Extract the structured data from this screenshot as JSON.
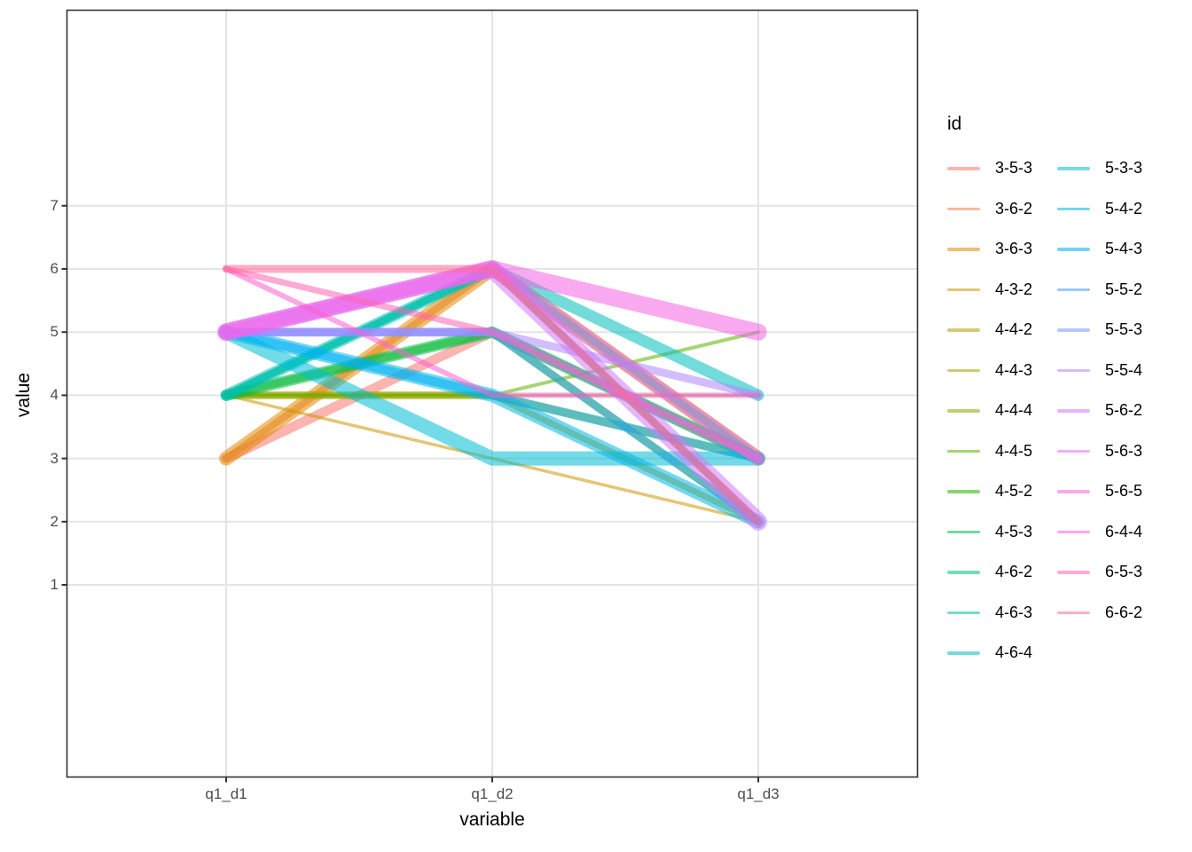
{
  "figure": {
    "background": "#FFFFFF",
    "panel_border_color": "#333333",
    "grid_color": "#E4E4E4",
    "tick_color": "#333333",
    "tick_label_color": "#4D4D4D"
  },
  "axes": {
    "x": {
      "title": "variable",
      "ticks": [
        "q1_d1",
        "q1_d2",
        "q1_d3"
      ]
    },
    "y": {
      "title": "value",
      "ticks": [
        "1",
        "2",
        "3",
        "4",
        "5",
        "6",
        "7"
      ]
    }
  },
  "legend": {
    "title": "id",
    "position": "right",
    "columns": [
      [
        "3-5-3",
        "3-6-2",
        "3-6-3",
        "4-3-2",
        "4-4-2",
        "4-4-3",
        "4-4-4",
        "4-4-5",
        "4-5-2",
        "4-5-3",
        "4-6-2",
        "4-6-3",
        "4-6-4"
      ],
      [
        "5-3-3",
        "5-4-2",
        "5-4-3",
        "5-5-2",
        "5-5-3",
        "5-5-4",
        "5-6-2",
        "5-6-3",
        "5-6-5",
        "6-4-4",
        "6-5-3",
        "6-6-2"
      ]
    ]
  },
  "chart_data": {
    "type": "line",
    "title": "",
    "xlabel": "variable",
    "ylabel": "value",
    "x_categories": [
      "q1_d1",
      "q1_d2",
      "q1_d3"
    ],
    "y_tick_values": [
      1,
      2,
      3,
      4,
      5,
      6,
      7
    ],
    "grid": "major-only",
    "legend_title": "id",
    "legend_position": "right",
    "line_alpha": 0.55,
    "line_cap": "round",
    "series": [
      {
        "id": "3-5-3",
        "values": [
          3,
          5,
          3
        ],
        "color": "#F8766D",
        "width": 11
      },
      {
        "id": "3-6-2",
        "values": [
          3,
          6,
          2
        ],
        "color": "#F08049",
        "width": 8
      },
      {
        "id": "3-6-3",
        "values": [
          3,
          6,
          3
        ],
        "color": "#E18A00",
        "width": 16
      },
      {
        "id": "4-3-2",
        "values": [
          4,
          3,
          2
        ],
        "color": "#CE9700",
        "width": 3.5
      },
      {
        "id": "4-4-2",
        "values": [
          4,
          4,
          2
        ],
        "color": "#B89E00",
        "width": 7
      },
      {
        "id": "4-4-3",
        "values": [
          4,
          4,
          3
        ],
        "color": "#A2A400",
        "width": 9
      },
      {
        "id": "4-4-4",
        "values": [
          4,
          4,
          4
        ],
        "color": "#85AC00",
        "width": 3
      },
      {
        "id": "4-4-5",
        "values": [
          4,
          4,
          5
        ],
        "color": "#5DB300",
        "width": 4
      },
      {
        "id": "4-5-2",
        "values": [
          4,
          5,
          2
        ],
        "color": "#21B700",
        "width": 9
      },
      {
        "id": "4-5-3",
        "values": [
          4,
          5,
          3
        ],
        "color": "#00BC51",
        "width": 13
      },
      {
        "id": "4-6-2",
        "values": [
          4,
          6,
          2
        ],
        "color": "#00BF7B",
        "width": 8
      },
      {
        "id": "4-6-3",
        "values": [
          4,
          6,
          3
        ],
        "color": "#00C19D",
        "width": 9
      },
      {
        "id": "4-6-4",
        "values": [
          4,
          6,
          4
        ],
        "color": "#00C0BC",
        "width": 13
      },
      {
        "id": "5-3-3",
        "values": [
          5,
          3,
          3
        ],
        "color": "#00BDD4",
        "width": 16
      },
      {
        "id": "5-4-2",
        "values": [
          5,
          4,
          2
        ],
        "color": "#00B7E8",
        "width": 15
      },
      {
        "id": "5-4-3",
        "values": [
          5,
          4,
          3
        ],
        "color": "#00AFF6",
        "width": 10
      },
      {
        "id": "5-5-2",
        "values": [
          5,
          5,
          2
        ],
        "color": "#3FA2FF",
        "width": 9
      },
      {
        "id": "5-5-3",
        "values": [
          5,
          5,
          3
        ],
        "color": "#7E96FF",
        "width": 10
      },
      {
        "id": "5-5-4",
        "values": [
          5,
          5,
          4
        ],
        "color": "#AE87FF",
        "width": 9
      },
      {
        "id": "5-6-2",
        "values": [
          5,
          6,
          2
        ],
        "color": "#CF78FF",
        "width": 20
      },
      {
        "id": "5-6-3",
        "values": [
          5,
          6,
          3
        ],
        "color": "#E56DF5",
        "width": 15
      },
      {
        "id": "5-6-5",
        "values": [
          5,
          6,
          5
        ],
        "color": "#F363E3",
        "width": 19
      },
      {
        "id": "6-4-4",
        "values": [
          6,
          4,
          4
        ],
        "color": "#FC61CF",
        "width": 6
      },
      {
        "id": "6-5-3",
        "values": [
          6,
          5,
          3
        ],
        "color": "#FF62B6",
        "width": 7
      },
      {
        "id": "6-6-2",
        "values": [
          6,
          6,
          2
        ],
        "color": "#FF6A9A",
        "width": 9
      }
    ]
  }
}
